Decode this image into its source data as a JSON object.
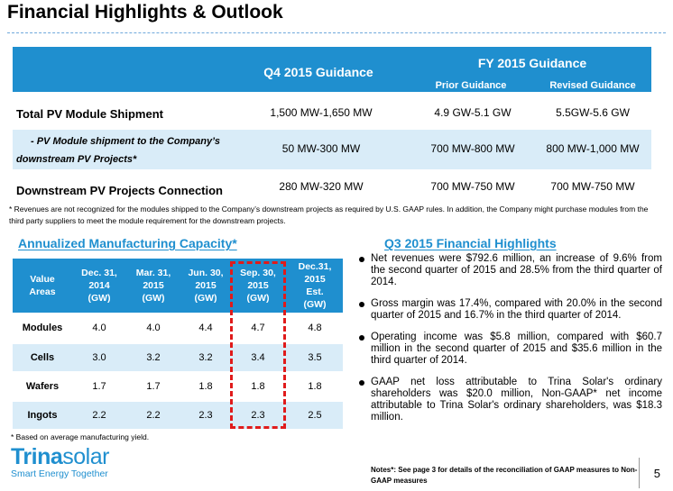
{
  "title": "Financial Highlights & Outlook",
  "guidance": {
    "q4_header": "Q4 2015 Guidance",
    "fy_header": "FY 2015 Guidance",
    "prior_header": "Prior Guidance",
    "revised_header": "Revised Guidance",
    "rows": [
      {
        "label": "Total PV Module Shipment",
        "q4": "1,500 MW-1,650 MW",
        "prior": "4.9 GW-5.1 GW",
        "revised": "5.5GW-5.6 GW"
      },
      {
        "label_line1": "- PV Module shipment to the Company’s",
        "label_line2": "downstream PV Projects*",
        "q4": "50 MW-300 MW",
        "prior": "700 MW-800 MW",
        "revised": "800 MW-1,000 MW"
      },
      {
        "label": "Downstream PV Projects Connection",
        "q4": "280 MW-320 MW",
        "prior": "700 MW-750 MW",
        "revised": "700 MW-750 MW"
      }
    ],
    "footnote": "*  Revenues are not recognized for the modules shipped to the Company’s downstream projects as required by U.S. GAAP rules. In addition, the Company might purchase modules from the third party suppliers to meet the module  requirement for the downstream projects."
  },
  "capacity": {
    "heading": "Annualized Manufacturing Capacity*",
    "headers": [
      "Value\nAreas",
      "Dec. 31,\n2014\n(GW)",
      "Mar. 31,\n2015\n(GW)",
      "Jun. 30,\n2015\n(GW)",
      "Sep. 30,\n2015\n(GW)",
      "Dec.31,\n2015\nEst.\n(GW)"
    ],
    "rows": [
      {
        "label": "Modules",
        "values": [
          "4.0",
          "4.0",
          "4.4",
          "4.7",
          "4.8"
        ]
      },
      {
        "label": "Cells",
        "values": [
          "3.0",
          "3.2",
          "3.2",
          "3.4",
          "3.5"
        ]
      },
      {
        "label": "Wafers",
        "values": [
          "1.7",
          "1.7",
          "1.8",
          "1.8",
          "1.8"
        ]
      },
      {
        "label": "Ingots",
        "values": [
          "2.2",
          "2.2",
          "2.3",
          "2.3",
          "2.5"
        ]
      }
    ],
    "footnote": "*  Based on average manufacturing yield.",
    "highlight_color": "#e01b1b"
  },
  "highlights": {
    "heading": "Q3 2015 Financial Highlights",
    "bullets": [
      "Net revenues were $792.6 million, an increase of 9.6% from the second quarter of 2015 and 28.5% from the  third quarter of 2014.",
      "Gross margin was 17.4%, compared with 20.0% in the second quarter of 2015 and 16.7% in the third quarter of 2014.",
      "Operating income was $5.8 million, compared with $60.7 million in the second quarter of 2015 and $35.6 million in the third quarter of 2014.",
      "GAAP net loss attributable to Trina Solar's ordinary shareholders was $20.0 million, Non-GAAP* net income attributable to Trina Solar's ordinary shareholders, was $18.3 million."
    ],
    "notes": "Notes*: See  page 3 for details of the reconciliation of GAAP measures to Non-GAAP measures"
  },
  "logo": {
    "name_a": "Trina",
    "name_b": "solar",
    "tagline": "Smart Energy Together"
  },
  "page_number": "5",
  "colors": {
    "accent": "#1f8fcf",
    "row_shade": "#d9ecf8"
  }
}
